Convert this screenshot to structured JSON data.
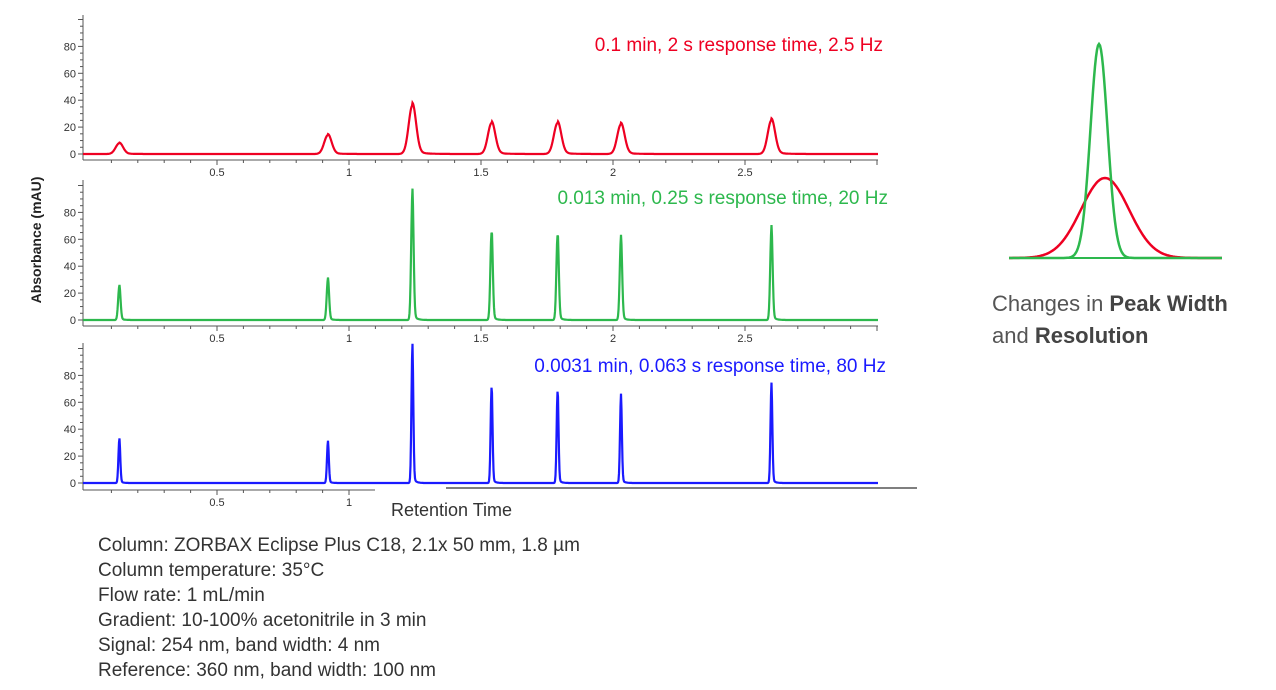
{
  "chart_data": {
    "type": "line",
    "ylabel": "Absorbance (mAU)",
    "xlabel": "Retention Time",
    "xlim": [
      0,
      3
    ],
    "ylim": [
      0,
      100
    ],
    "x_ticks": [
      "0.5",
      "1",
      "1.5",
      "2",
      "2.5"
    ],
    "x_tick_values": [
      0.5,
      1,
      1.5,
      2,
      2.5
    ],
    "y_ticks": [
      "0",
      "20",
      "40",
      "60",
      "80"
    ],
    "y_tick_values": [
      0,
      20,
      40,
      60,
      80
    ],
    "peak_times": [
      0.13,
      0.92,
      1.24,
      1.54,
      1.79,
      2.03,
      2.6
    ],
    "panels": [
      {
        "label": "0.1 min, 2 s response time, 2.5 Hz",
        "color": "#ee0022",
        "peak_heights": [
          8,
          14,
          36,
          23,
          23,
          22,
          25
        ],
        "peak_width_min": 0.014
      },
      {
        "label": "0.013 min, 0.25 s response time, 20 Hz",
        "color": "#2db84d",
        "peak_heights": [
          25,
          30,
          93,
          65,
          63,
          60,
          67
        ],
        "peak_width_min": 0.0045
      },
      {
        "label": "0.0031 min, 0.063 s response time, 80 Hz",
        "color": "#1a1aff",
        "peak_heights": [
          32,
          30,
          99,
          71,
          68,
          63,
          71
        ],
        "peak_width_min": 0.0035
      }
    ]
  },
  "illustration": {
    "caption_1a": "Changes in ",
    "caption_1b": "Peak Width",
    "caption_2a": "and ",
    "caption_2b": "Resolution",
    "narrow_color": "#2db84d",
    "broad_color": "#ee0022"
  },
  "conditions": [
    "Column: ZORBAX Eclipse Plus C18, 2.1x 50 mm, 1.8 µm",
    "Column temperature: 35°C",
    "Flow rate: 1 mL/min",
    "Gradient: 10-100% acetonitrile in 3 min",
    "Signal: 254 nm, band width: 4 nm",
    "Reference: 360 nm, band width: 100 nm"
  ]
}
